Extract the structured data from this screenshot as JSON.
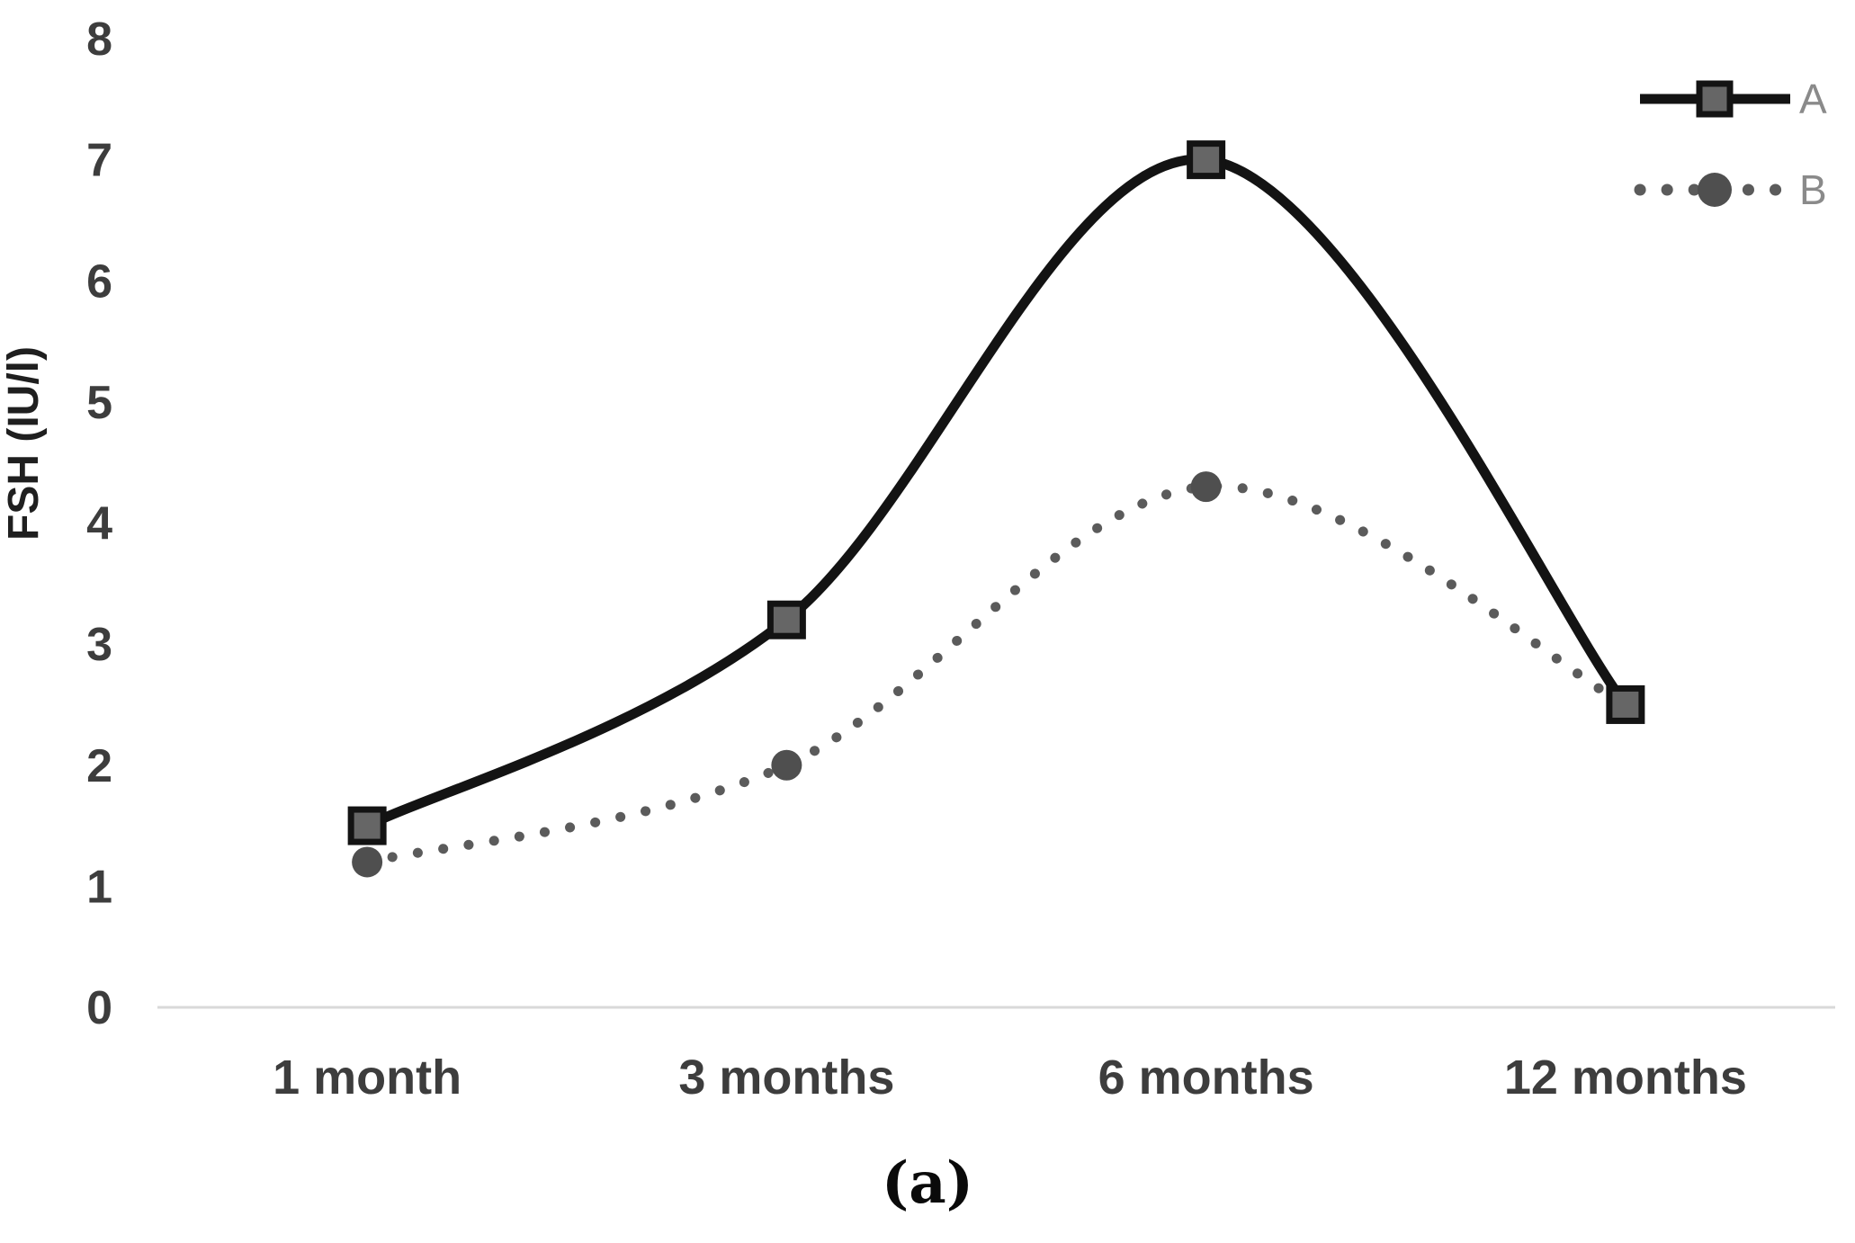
{
  "figure": {
    "caption": "(a)"
  },
  "chart_data": {
    "type": "line",
    "categories": [
      "1 month",
      "3 months",
      "6 months",
      "12 months"
    ],
    "series": [
      {
        "name": "A",
        "values": [
          1.5,
          3.2,
          7.0,
          2.5
        ],
        "line_style": "solid",
        "marker": "square",
        "color": "#131313"
      },
      {
        "name": "B",
        "values": [
          1.2,
          2.0,
          4.3,
          2.5
        ],
        "line_style": "dotted",
        "marker": "circle",
        "color": "#5b5b5b"
      }
    ],
    "title": "",
    "xlabel": "",
    "ylabel": "FSH (IU/l)",
    "ylim": [
      0,
      8
    ],
    "yticks": [
      0,
      1,
      2,
      3,
      4,
      5,
      6,
      7,
      8
    ],
    "grid": "off",
    "legend_position": "top-right",
    "colors": {
      "baseline": "#d9d9d9",
      "tick_labels": "#3d3d3d",
      "legend_labels": "#8a8a8a",
      "series_a": "#131313",
      "series_a_marker_fill": "#666666",
      "series_b": "#5b5b5b",
      "series_b_marker_fill": "#4f4f4f"
    }
  }
}
